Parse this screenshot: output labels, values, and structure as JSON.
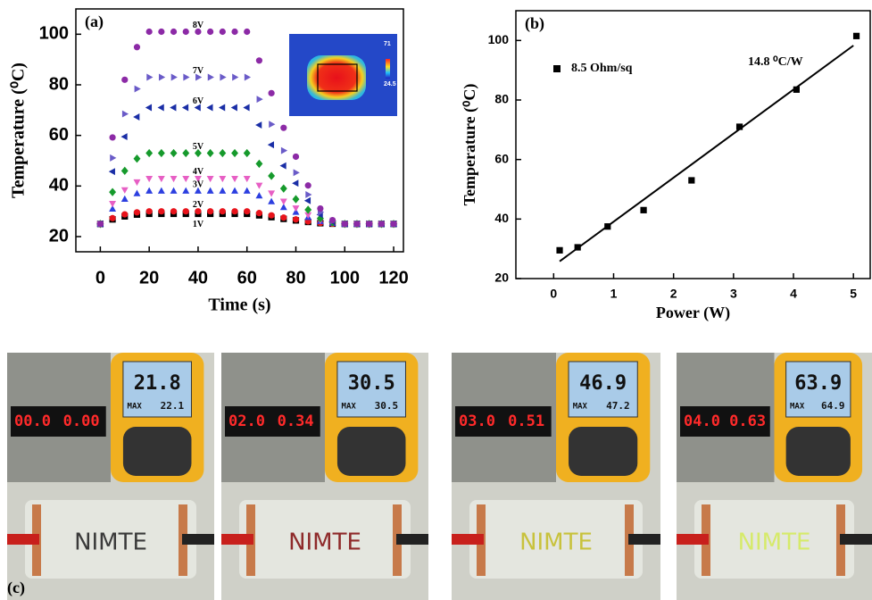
{
  "chart_data": [
    {
      "type": "scatter",
      "panel_label": "(a)",
      "x_label": "Time (s)",
      "y_label": "Temperature (⁰C)",
      "xlim": [
        -10,
        124
      ],
      "ylim": [
        14,
        110
      ],
      "xticks": [
        0,
        20,
        40,
        60,
        80,
        100,
        120
      ],
      "yticks": [
        20,
        40,
        60,
        80,
        100
      ],
      "grid": false,
      "inset_labels": [
        "71",
        "24.5"
      ],
      "x": [
        0,
        5,
        10,
        15,
        20,
        25,
        30,
        35,
        40,
        45,
        50,
        55,
        60,
        65,
        70,
        75,
        80,
        85,
        90,
        95,
        100,
        105,
        110,
        115,
        120
      ],
      "series": [
        {
          "name": "1V",
          "color": "#000000",
          "marker": "square",
          "values": [
            25,
            26.8,
            28,
            28.7,
            29,
            29,
            29,
            29,
            29,
            29,
            29,
            29,
            29,
            28.4,
            27.7,
            27,
            26.4,
            25.8,
            25.3,
            25.1,
            25,
            25,
            25,
            25,
            25
          ]
        },
        {
          "name": "2V",
          "color": "#e8131b",
          "marker": "circle",
          "values": [
            25,
            27.3,
            28.8,
            29.6,
            30,
            30,
            30,
            30,
            30,
            30,
            30,
            30,
            30,
            29.3,
            28.4,
            27.5,
            26.8,
            26,
            25.4,
            25.1,
            25,
            25,
            25,
            25,
            25
          ]
        },
        {
          "name": "3V",
          "color": "#2c3fe0",
          "marker": "triangle-up",
          "values": [
            25,
            30.9,
            34.8,
            37,
            38,
            38,
            38,
            38,
            38,
            38,
            38,
            38,
            38,
            36.1,
            33.8,
            31.5,
            29.6,
            27.6,
            26,
            25.3,
            25,
            25,
            25,
            25,
            25
          ]
        },
        {
          "name": "4V",
          "color": "#e75fc4",
          "marker": "triangle-down",
          "values": [
            25,
            33.1,
            38.5,
            41.6,
            43,
            43,
            43,
            43,
            43,
            43,
            43,
            43,
            43,
            40.3,
            37.2,
            34,
            31.3,
            28.6,
            26.4,
            25.4,
            25,
            25,
            25,
            25,
            25
          ]
        },
        {
          "name": "5V",
          "color": "#169a2c",
          "marker": "diamond",
          "values": [
            25,
            37.6,
            46,
            50.8,
            53,
            53,
            53,
            53,
            53,
            53,
            53,
            53,
            53,
            48.8,
            44,
            39,
            34.8,
            30.6,
            27.2,
            25.6,
            25,
            25,
            25,
            25,
            25
          ]
        },
        {
          "name": "6V",
          "color": "#1a2ea6",
          "marker": "triangle-left",
          "values": [
            25,
            45.7,
            59.5,
            67.3,
            71,
            71,
            71,
            71,
            71,
            71,
            71,
            71,
            71,
            64.1,
            56.3,
            48,
            41.1,
            34.2,
            28.7,
            25.9,
            25,
            25,
            25,
            25,
            25
          ]
        },
        {
          "name": "7V",
          "color": "#6a5bc8",
          "marker": "triangle-right",
          "values": [
            25,
            51.1,
            68.5,
            78.4,
            83,
            83,
            83,
            83,
            83,
            83,
            83,
            83,
            83,
            74.3,
            64.4,
            54,
            45.3,
            36.6,
            29.6,
            26.2,
            25,
            25,
            25,
            25,
            25
          ]
        },
        {
          "name": "8V",
          "color": "#8c2aa6",
          "marker": "circle",
          "values": [
            25,
            59.2,
            82,
            94.9,
            101,
            101,
            101,
            101,
            101,
            101,
            101,
            101,
            101,
            89.6,
            76.7,
            63,
            51.6,
            40.2,
            31.1,
            26.5,
            25,
            25,
            25,
            25,
            25
          ]
        }
      ]
    },
    {
      "type": "scatter",
      "panel_label": "(b)",
      "x_label": "Power (W)",
      "y_label": "Temperature (⁰C)",
      "xlim": [
        -0.63,
        5.28
      ],
      "ylim": [
        20,
        110
      ],
      "xticks": [
        0,
        1,
        2,
        3,
        4,
        5
      ],
      "yticks": [
        20,
        40,
        60,
        80,
        100
      ],
      "grid": false,
      "annotation": "14.8 ⁰C/W",
      "x": [
        0.1,
        0.4,
        0.9,
        1.5,
        2.3,
        3.1,
        4.05,
        5.05
      ],
      "series": [
        {
          "name": "8.5 Ohm/sq",
          "color": "#000000",
          "marker": "square",
          "values": [
            29.5,
            30.5,
            37.5,
            43,
            53,
            71,
            83.5,
            101.5
          ]
        }
      ],
      "fit": {
        "x": [
          0.1,
          5.0
        ],
        "y": [
          25.8,
          98.3
        ],
        "color": "#000000"
      }
    }
  ],
  "photos": {
    "panel_label": "(c)",
    "max_label": "MAX",
    "panels": [
      {
        "voltage": "00.0",
        "current": "0.00",
        "temp": "21.8",
        "max": "22.1",
        "sample": "NIMTE",
        "sample_color": "#3a3a3a"
      },
      {
        "voltage": "02.0",
        "current": "0.34",
        "temp": "30.5",
        "max": "30.5",
        "sample": "NIMTE",
        "sample_color": "#8e2a2a"
      },
      {
        "voltage": "03.0",
        "current": "0.51",
        "temp": "46.9",
        "max": "47.2",
        "sample": "NIMTE",
        "sample_color": "#c8c23c"
      },
      {
        "voltage": "04.0",
        "current": "0.63",
        "temp": "63.9",
        "max": "64.9",
        "sample": "NIMTE",
        "sample_color": "#d6ea6a"
      }
    ]
  }
}
